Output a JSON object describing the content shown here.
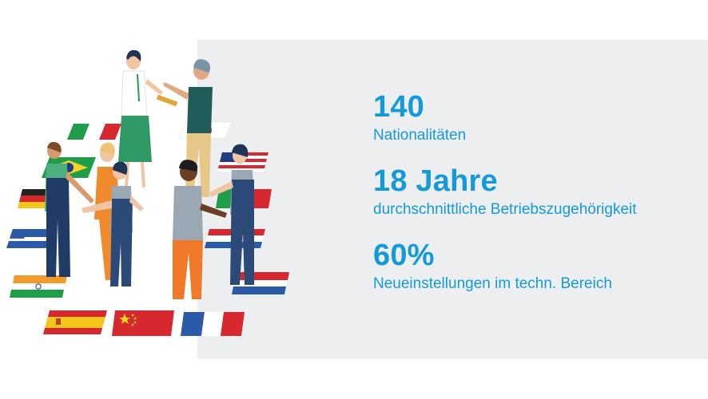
{
  "stats": [
    {
      "value": "140",
      "label": "Nationalitäten"
    },
    {
      "value": "18 Jahre",
      "label": "durchschnittliche Betriebszugehörigkeit"
    },
    {
      "value": "60%",
      "label": "Neueinstellungen im techn. Bereich"
    }
  ],
  "colors": {
    "accent": "#149ad9",
    "panel_background": "#edeef0"
  },
  "illustration": {
    "subject": "group-of-people-with-flags-icon",
    "flags": [
      "brazil",
      "italy",
      "japan",
      "usa",
      "germany",
      "netherlands",
      "india",
      "spain",
      "china",
      "france",
      "mexico",
      "greece"
    ]
  }
}
